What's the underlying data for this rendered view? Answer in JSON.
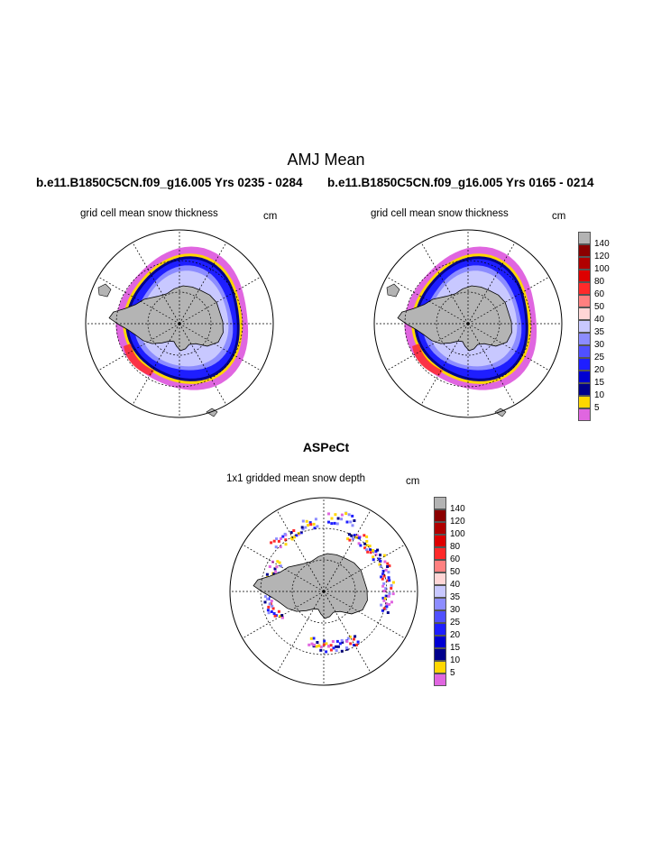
{
  "header": {
    "title": "AMJ Mean",
    "run_left": "b.e11.B1850C5CN.f09_g16.005  Yrs 0235 - 0284",
    "run_right": "b.e11.B1850C5CN.f09_g16.005  Yrs 0165 - 0214"
  },
  "panels": {
    "left": {
      "subtitle": "grid cell mean snow thickness",
      "units": "cm"
    },
    "right": {
      "subtitle": "grid cell mean snow thickness",
      "units": "cm"
    },
    "bottom": {
      "section_title": "ASPeCt",
      "subtitle": "1x1 gridded mean snow depth",
      "units": "cm"
    }
  },
  "colorbar": {
    "labels": [
      "140",
      "120",
      "100",
      "80",
      "60",
      "50",
      "40",
      "35",
      "30",
      "25",
      "20",
      "15",
      "10",
      "5"
    ],
    "colors": [
      "#b3b3b3",
      "#8b0000",
      "#b00000",
      "#dd0000",
      "#ff2a2a",
      "#ff8080",
      "#ffd6d6",
      "#c8c8ff",
      "#8c8cff",
      "#5050ff",
      "#1e1eff",
      "#0000d2",
      "#00008c",
      "#ffd700",
      "#e066e0"
    ]
  },
  "map_colors": {
    "land": "#b4b4b4",
    "thin_ice": "#e066e0",
    "band_yellow": "#ffd700",
    "band_navy": "#00008c",
    "blue": "#1e1eff",
    "light_blue": "#8c8cff",
    "pale": "#c8c8ff",
    "red": "#ff2a2a"
  }
}
